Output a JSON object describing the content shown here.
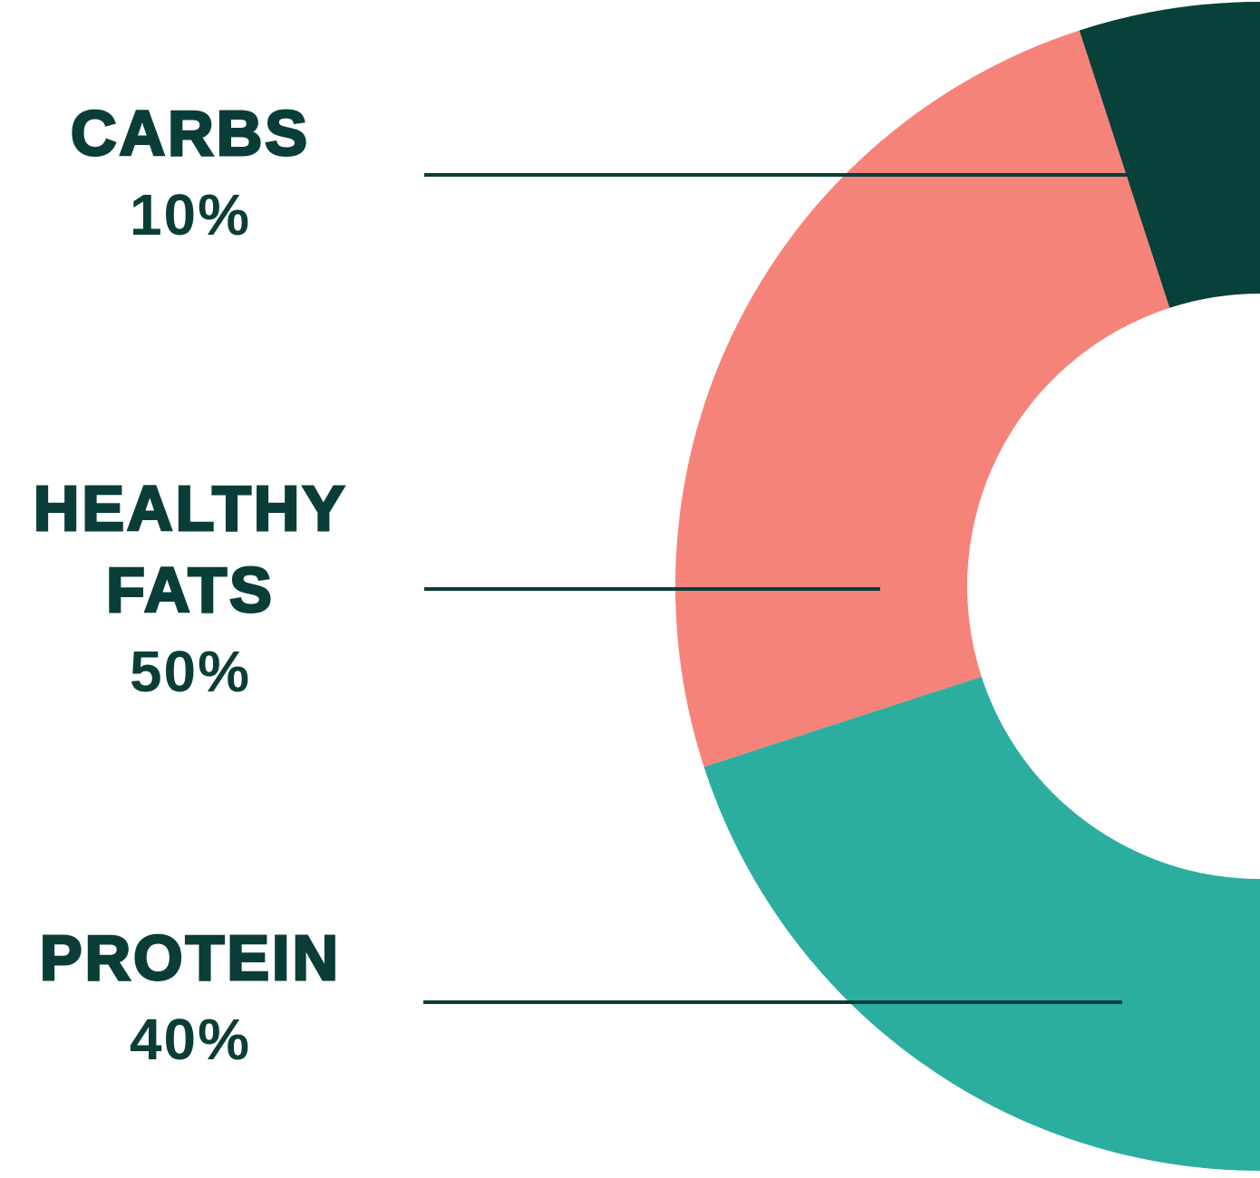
{
  "chart_data": {
    "type": "donut",
    "categories": [
      "CARBS",
      "HEALTHY FATS",
      "PROTEIN"
    ],
    "values": [
      10,
      50,
      40
    ],
    "value_labels": [
      "10%",
      "50%",
      "40%"
    ],
    "colors": [
      "#08403a",
      "#f6837a",
      "#2bae9f"
    ]
  }
}
